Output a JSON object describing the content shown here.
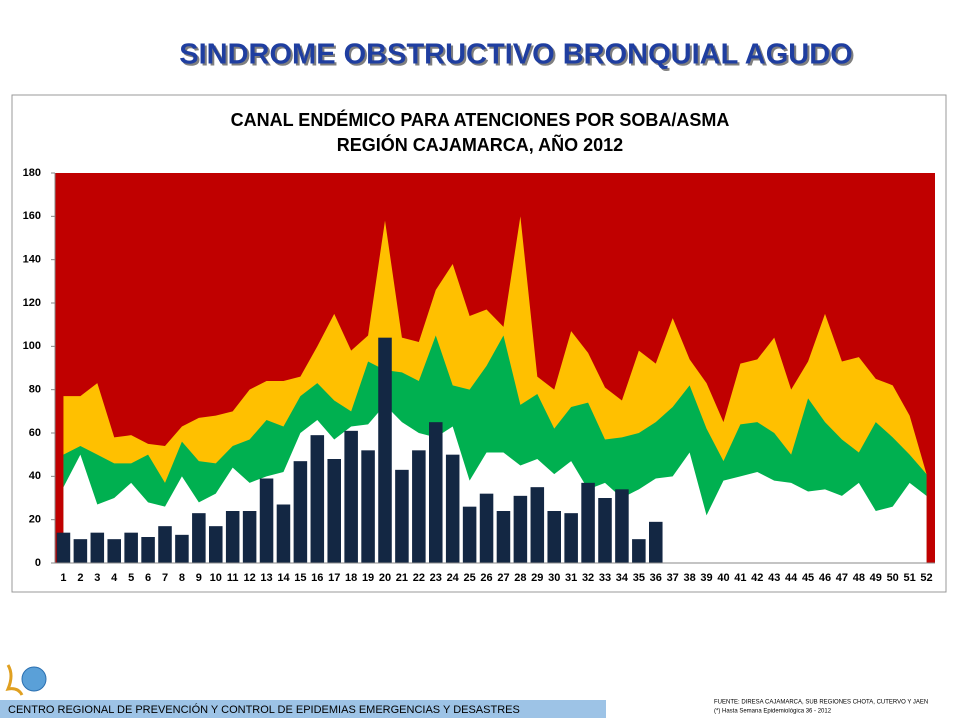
{
  "heading": "SINDROME OBSTRUCTIVO BRONQUIAL AGUDO",
  "chart_data": {
    "type": "combo",
    "title": "CANAL ENDÉMICO PARA ATENCIONES POR SOBA/ASMA",
    "subtitle": "REGIÓN CAJAMARCA, AÑO 2012",
    "plot_background": "#c00000",
    "categories": [
      "1",
      "2",
      "3",
      "4",
      "5",
      "6",
      "7",
      "8",
      "9",
      "10",
      "11",
      "12",
      "13",
      "14",
      "15",
      "16",
      "17",
      "18",
      "19",
      "20",
      "21",
      "22",
      "23",
      "24",
      "25",
      "26",
      "27",
      "28",
      "29",
      "30",
      "31",
      "32",
      "33",
      "34",
      "35",
      "36",
      "37",
      "38",
      "39",
      "40",
      "41",
      "42",
      "43",
      "44",
      "45",
      "46",
      "47",
      "48",
      "49",
      "50",
      "51",
      "52"
    ],
    "ylim": [
      0,
      180
    ],
    "yticks": [
      0,
      20,
      40,
      60,
      80,
      100,
      120,
      140,
      160,
      180
    ],
    "series": [
      {
        "type": "area",
        "color": "#ffc000",
        "values": [
          77,
          77,
          83,
          58,
          59,
          55,
          54,
          63,
          67,
          68,
          70,
          80,
          84,
          84,
          86,
          100,
          115,
          98,
          105,
          158,
          104,
          102,
          126,
          138,
          114,
          117,
          109,
          160,
          86,
          80,
          107,
          97,
          81,
          75,
          98,
          92,
          113,
          94,
          83,
          65,
          92,
          94,
          104,
          80,
          93,
          115,
          93,
          95,
          85,
          82,
          68,
          41
        ]
      },
      {
        "type": "area",
        "color": "#00b050",
        "values": [
          50,
          54,
          50,
          46,
          46,
          50,
          37,
          56,
          47,
          46,
          54,
          57,
          66,
          63,
          77,
          83,
          75,
          70,
          93,
          89,
          88,
          84,
          105,
          82,
          80,
          91,
          105,
          73,
          78,
          62,
          72,
          74,
          57,
          58,
          60,
          65,
          72,
          82,
          62,
          47,
          64,
          65,
          60,
          50,
          76,
          65,
          57,
          51,
          65,
          58,
          50,
          41
        ]
      },
      {
        "type": "area",
        "color": "#ffffff",
        "values": [
          35,
          50,
          27,
          30,
          37,
          28,
          26,
          40,
          28,
          32,
          44,
          37,
          40,
          42,
          60,
          66,
          57,
          63,
          64,
          73,
          65,
          60,
          58,
          63,
          38,
          51,
          51,
          45,
          48,
          41,
          47,
          34,
          37,
          30,
          34,
          39,
          40,
          51,
          22,
          38,
          40,
          42,
          38,
          37,
          33,
          34,
          31,
          37,
          24,
          26,
          37,
          31
        ]
      },
      {
        "type": "bar",
        "color": "#132743",
        "values": [
          14,
          11,
          14,
          11,
          14,
          12,
          17,
          13,
          23,
          17,
          24,
          24,
          39,
          27,
          47,
          59,
          48,
          61,
          52,
          104,
          43,
          52,
          65,
          50,
          26,
          32,
          24,
          31,
          35,
          24,
          23,
          37,
          30,
          34,
          11,
          19,
          null,
          null,
          null,
          null,
          null,
          null,
          null,
          null,
          null,
          null,
          null,
          null,
          null,
          null,
          null,
          null
        ]
      }
    ]
  },
  "footer": {
    "institution": "CENTRO REGIONAL DE PREVENCIÓN Y CONTROL DE EPIDEMIAS EMERGENCIAS Y DESASTRES",
    "source": "FUENTE: DIRESA CAJAMARCA, SUB REGIONES CHOTA, CUTERVO Y JAEN",
    "note": "(*) Hasta Semana Epidemiológica 36 - 2012"
  }
}
